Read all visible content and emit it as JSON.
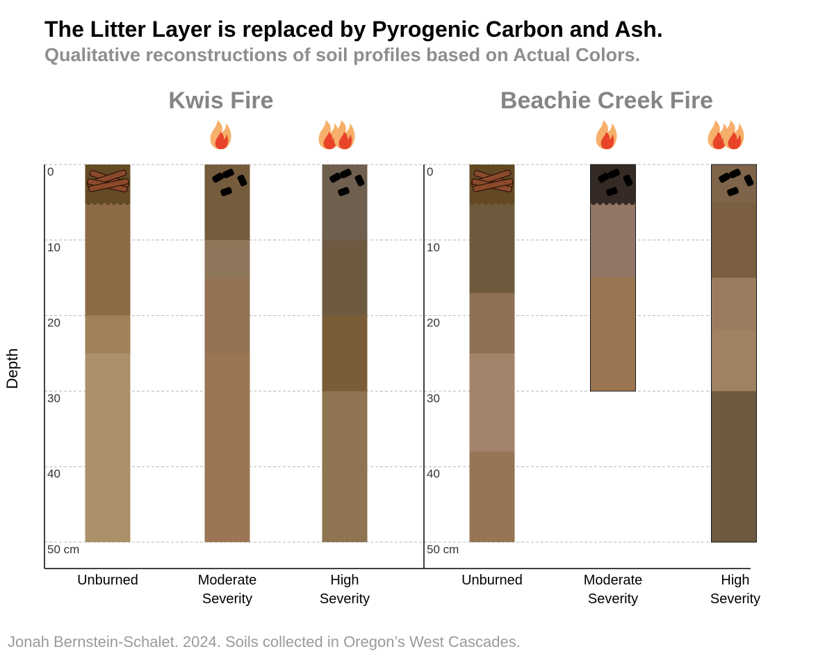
{
  "title": "The Litter Layer is replaced by Pyrogenic Carbon and Ash.",
  "subtitle": "Qualitative reconstructions of soil profiles based on Actual Colors.",
  "caption": "Jonah Bernstein-Schalet. 2024. Soils collected in Oregon’s West Cascades.",
  "ylabel": "Depth",
  "chart_data": {
    "type": "bar",
    "ylabel": "Depth",
    "ylim": [
      0,
      50
    ],
    "y_ticks": [
      "0",
      "10",
      "20",
      "30",
      "40",
      "50 cm"
    ],
    "grid": true,
    "panels": [
      {
        "title": "Kwis Fire",
        "profiles": [
          {
            "category": [
              "Unburned"
            ],
            "depth": 50,
            "fire": "none",
            "surface": "litter",
            "layers": [
              {
                "top": 0,
                "bottom": 5,
                "color": "#654a26"
              },
              {
                "top": 5,
                "bottom": 20,
                "color": "#8c6b44"
              },
              {
                "top": 20,
                "bottom": 25,
                "color": "#a08057"
              },
              {
                "top": 25,
                "bottom": 50,
                "color": "#ab9069"
              }
            ]
          },
          {
            "category": [
              "Moderate",
              "Severity"
            ],
            "depth": 50,
            "fire": "moderate",
            "surface": "char",
            "layers": [
              {
                "top": 0,
                "bottom": 10,
                "color": "#745c3c"
              },
              {
                "top": 10,
                "bottom": 15,
                "color": "#8e765a"
              },
              {
                "top": 15,
                "bottom": 25,
                "color": "#937353"
              },
              {
                "top": 25,
                "bottom": 50,
                "color": "#9b7654"
              }
            ]
          },
          {
            "category": [
              "High",
              "Severity"
            ],
            "depth": 50,
            "fire": "high",
            "surface": "char",
            "layers": [
              {
                "top": 0,
                "bottom": 10,
                "color": "#6e5f4f"
              },
              {
                "top": 10,
                "bottom": 20,
                "color": "#6e5a40"
              },
              {
                "top": 20,
                "bottom": 30,
                "color": "#7a5c37"
              },
              {
                "top": 30,
                "bottom": 50,
                "color": "#8e7450"
              }
            ]
          }
        ]
      },
      {
        "title": "Beachie Creek Fire",
        "profiles": [
          {
            "category": [
              "Unburned"
            ],
            "depth": 50,
            "fire": "none",
            "surface": "litter",
            "layers": [
              {
                "top": 0,
                "bottom": 5,
                "color": "#624924"
              },
              {
                "top": 5,
                "bottom": 17,
                "color": "#6e593c"
              },
              {
                "top": 17,
                "bottom": 25,
                "color": "#8c7152"
              },
              {
                "top": 25,
                "bottom": 38,
                "color": "#a3836a"
              },
              {
                "top": 38,
                "bottom": 50,
                "color": "#977456"
              }
            ]
          },
          {
            "category": [
              "Moderate",
              "Severity"
            ],
            "depth": 30,
            "fire": "moderate",
            "surface": "char",
            "ash": true,
            "layers": [
              {
                "top": 0,
                "bottom": 5,
                "color": "#352a24"
              },
              {
                "top": 5,
                "bottom": 15,
                "color": "#937766"
              },
              {
                "top": 15,
                "bottom": 30,
                "color": "#9b7552"
              }
            ]
          },
          {
            "category": [
              "High",
              "Severity"
            ],
            "depth": 50,
            "fire": "high",
            "surface": "char",
            "layers": [
              {
                "top": 0,
                "bottom": 5,
                "color": "#7e6448"
              },
              {
                "top": 5,
                "bottom": 15,
                "color": "#7a5f40"
              },
              {
                "top": 15,
                "bottom": 22,
                "color": "#9c7c5e"
              },
              {
                "top": 22,
                "bottom": 30,
                "color": "#a08162"
              },
              {
                "top": 30,
                "bottom": 50,
                "color": "#6e5a40"
              }
            ]
          }
        ]
      }
    ]
  }
}
